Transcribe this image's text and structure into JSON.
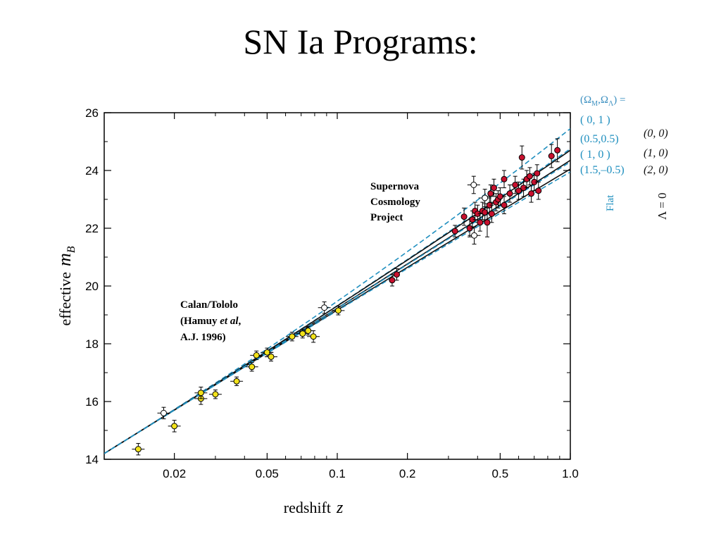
{
  "slide": {
    "title": "SN Ia Programs:"
  },
  "chart_data": {
    "type": "scatter",
    "xlabel": "redshift",
    "xlabel_var": "z",
    "ylabel": "effective",
    "ylabel_var": "m",
    "ylabel_sub": "B",
    "x_scale": "log",
    "xlim": [
      0.01,
      1.0
    ],
    "ylim": [
      14,
      26
    ],
    "x_ticks": [
      {
        "value": 0.02,
        "label": "0.02"
      },
      {
        "value": 0.05,
        "label": "0.05"
      },
      {
        "value": 0.1,
        "label": "0.1"
      },
      {
        "value": 0.2,
        "label": "0.2"
      },
      {
        "value": 0.5,
        "label": "0.5"
      },
      {
        "value": 1.0,
        "label": "1.0"
      }
    ],
    "y_ticks": [
      {
        "value": 14,
        "label": "14"
      },
      {
        "value": 16,
        "label": "16"
      },
      {
        "value": 18,
        "label": "18"
      },
      {
        "value": 20,
        "label": "20"
      },
      {
        "value": 22,
        "label": "22"
      },
      {
        "value": 24,
        "label": "24"
      },
      {
        "value": 26,
        "label": "26"
      }
    ],
    "grid": false,
    "colors": {
      "calan": "#f2e21a",
      "scp": "#c8102e",
      "flat": "#1f8fbf",
      "lambda0": "#111111",
      "open": "#ffffff"
    },
    "series": [
      {
        "name": "Calan/Tololo",
        "marker": "yellow-circle",
        "points": [
          {
            "z": 0.014,
            "m": 14.35,
            "ey": 0.2
          },
          {
            "z": 0.02,
            "m": 15.15,
            "ey": 0.2
          },
          {
            "z": 0.026,
            "m": 16.1,
            "ey": 0.2
          },
          {
            "z": 0.026,
            "m": 16.3,
            "ey": 0.2
          },
          {
            "z": 0.03,
            "m": 16.25,
            "ey": 0.15
          },
          {
            "z": 0.037,
            "m": 16.7,
            "ey": 0.15
          },
          {
            "z": 0.043,
            "m": 17.2,
            "ey": 0.15
          },
          {
            "z": 0.045,
            "m": 17.6,
            "ey": 0.15
          },
          {
            "z": 0.05,
            "m": 17.7,
            "ey": 0.15
          },
          {
            "z": 0.052,
            "m": 17.55,
            "ey": 0.15
          },
          {
            "z": 0.064,
            "m": 18.25,
            "ey": 0.15
          },
          {
            "z": 0.071,
            "m": 18.35,
            "ey": 0.15
          },
          {
            "z": 0.075,
            "m": 18.45,
            "ey": 0.15
          },
          {
            "z": 0.079,
            "m": 18.25,
            "ey": 0.2
          },
          {
            "z": 0.101,
            "m": 19.15,
            "ey": 0.15
          }
        ]
      },
      {
        "name": "Calan/Tololo (open)",
        "marker": "open-circle",
        "points": [
          {
            "z": 0.018,
            "m": 15.6,
            "ey": 0.2
          },
          {
            "z": 0.088,
            "m": 19.25,
            "ey": 0.2
          },
          {
            "z": 0.385,
            "m": 23.5,
            "ey": 0.3
          },
          {
            "z": 0.387,
            "m": 21.75,
            "ey": 0.3
          },
          {
            "z": 0.43,
            "m": 23.05,
            "ey": 0.3
          }
        ]
      },
      {
        "name": "Supernova Cosmology Project",
        "marker": "red-circle",
        "points": [
          {
            "z": 0.172,
            "m": 20.2,
            "ey": 0.2
          },
          {
            "z": 0.18,
            "m": 20.4,
            "ey": 0.2
          },
          {
            "z": 0.32,
            "m": 21.9,
            "ey": 0.2
          },
          {
            "z": 0.35,
            "m": 22.4,
            "ey": 0.3
          },
          {
            "z": 0.37,
            "m": 22.0,
            "ey": 0.3
          },
          {
            "z": 0.38,
            "m": 22.3,
            "ey": 0.3
          },
          {
            "z": 0.39,
            "m": 22.6,
            "ey": 0.3
          },
          {
            "z": 0.4,
            "m": 22.5,
            "ey": 0.3
          },
          {
            "z": 0.41,
            "m": 22.2,
            "ey": 0.3
          },
          {
            "z": 0.42,
            "m": 22.6,
            "ey": 0.3
          },
          {
            "z": 0.43,
            "m": 22.55,
            "ey": 0.3
          },
          {
            "z": 0.44,
            "m": 22.2,
            "ey": 0.5
          },
          {
            "z": 0.45,
            "m": 22.8,
            "ey": 0.3
          },
          {
            "z": 0.455,
            "m": 23.2,
            "ey": 0.3
          },
          {
            "z": 0.46,
            "m": 22.5,
            "ey": 0.3
          },
          {
            "z": 0.47,
            "m": 23.4,
            "ey": 0.3
          },
          {
            "z": 0.48,
            "m": 22.9,
            "ey": 0.3
          },
          {
            "z": 0.49,
            "m": 23.0,
            "ey": 0.3
          },
          {
            "z": 0.5,
            "m": 23.1,
            "ey": 0.3
          },
          {
            "z": 0.52,
            "m": 22.8,
            "ey": 0.3
          },
          {
            "z": 0.52,
            "m": 23.7,
            "ey": 0.3
          },
          {
            "z": 0.55,
            "m": 23.2,
            "ey": 0.3
          },
          {
            "z": 0.58,
            "m": 23.5,
            "ey": 0.3
          },
          {
            "z": 0.6,
            "m": 23.3,
            "ey": 0.3
          },
          {
            "z": 0.62,
            "m": 24.45,
            "ey": 0.4
          },
          {
            "z": 0.63,
            "m": 23.4,
            "ey": 0.3
          },
          {
            "z": 0.65,
            "m": 23.7,
            "ey": 0.3
          },
          {
            "z": 0.67,
            "m": 23.8,
            "ey": 0.3
          },
          {
            "z": 0.68,
            "m": 23.2,
            "ey": 0.3
          },
          {
            "z": 0.7,
            "m": 23.6,
            "ey": 0.3
          },
          {
            "z": 0.72,
            "m": 23.9,
            "ey": 0.3
          },
          {
            "z": 0.73,
            "m": 23.3,
            "ey": 0.3
          },
          {
            "z": 0.83,
            "m": 24.5,
            "ey": 0.4
          },
          {
            "z": 0.88,
            "m": 24.7,
            "ey": 0.4
          }
        ]
      }
    ],
    "model_curves": [
      {
        "label": "( 0,   1 )",
        "group": "Flat",
        "style": "dashed",
        "color": "#1f8fbf",
        "m_at_1": 25.45
      },
      {
        "label": "(0.5,0.5)",
        "group": "Flat",
        "style": "dashed",
        "color": "#1f8fbf",
        "m_at_1": 24.75
      },
      {
        "label": "(0, 0)",
        "group": "Λ = 0",
        "style": "solid",
        "color": "#111111",
        "m_at_1": 24.7
      },
      {
        "label": "(1, 0)",
        "group": "Λ = 0",
        "style": "solid",
        "color": "#111111",
        "m_at_1": 24.35
      },
      {
        "label": "(2, 0)",
        "group": "Λ = 0",
        "style": "solid",
        "color": "#111111",
        "m_at_1": 24.05
      },
      {
        "label": "( 1,    0 )",
        "group": "Flat",
        "style": "dashed",
        "color": "#1f8fbf",
        "m_at_1": 24.3
      },
      {
        "label": "(1.5,–0.5)",
        "group": "Flat",
        "style": "dashed",
        "color": "#1f8fbf",
        "m_at_1": 23.95
      }
    ],
    "legend": {
      "header": "(Ω",
      "header_sub1": "M",
      "header_mid": ",Ω",
      "header_sub2": "Λ",
      "header_end": ") =",
      "flat_entries": [
        "( 0,   1 )",
        "(0.5,0.5)",
        "( 1,    0 )",
        "(1.5,–0.5)"
      ],
      "lambda0_entries": [
        "(0, 0)",
        "(1, 0)",
        "(2, 0)"
      ],
      "flat_label": "Flat",
      "lambda0_label": "Λ = 0"
    },
    "annotations": {
      "scp": [
        "Supernova",
        "Cosmology",
        "Project"
      ],
      "calan_line1": "Calan/Tololo",
      "calan_line2_a": "(Hamuy ",
      "calan_line2_b": "et al",
      "calan_line2_c": ",",
      "calan_line3": "A.J. 1996)"
    }
  }
}
